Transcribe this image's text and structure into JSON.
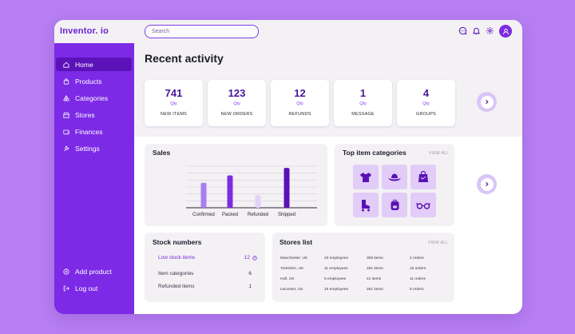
{
  "app": {
    "logo": "Inventor. io"
  },
  "search": {
    "placeholder": "Search"
  },
  "sidebar": {
    "items": [
      {
        "label": "Home",
        "icon": "home-icon",
        "active": true
      },
      {
        "label": "Products",
        "icon": "bag-icon"
      },
      {
        "label": "Categories",
        "icon": "shapes-icon"
      },
      {
        "label": "Stores",
        "icon": "store-icon"
      },
      {
        "label": "Finances",
        "icon": "wallet-icon"
      },
      {
        "label": "Settings",
        "icon": "wrench-icon"
      }
    ],
    "bottom": [
      {
        "label": "Add product",
        "icon": "plus-circle-icon"
      },
      {
        "label": "Log out",
        "icon": "logout-icon"
      }
    ]
  },
  "main": {
    "title": "Recent activity",
    "stats": [
      {
        "value": "741",
        "unit": "Qty",
        "label": "NEW ITEMS"
      },
      {
        "value": "123",
        "unit": "Qty",
        "label": "NEW ORDERS"
      },
      {
        "value": "12",
        "unit": "Qty",
        "label": "REFUNDS"
      },
      {
        "value": "1",
        "unit": "Qty",
        "label": "MESSAGE"
      },
      {
        "value": "4",
        "unit": "Qty",
        "label": "GROUPS"
      }
    ]
  },
  "sales": {
    "title": "Sales",
    "chart_data": {
      "type": "bar",
      "categories": [
        "Confirmed",
        "Packed",
        "Refunded",
        "Shipped"
      ],
      "colors": [
        "#a77ff0",
        "#7d2be2",
        "#e3d3f8",
        "#5a11b5"
      ],
      "values": [
        6,
        7.8,
        3.1,
        9.6
      ],
      "ylim": [
        0,
        10
      ],
      "grid": true
    }
  },
  "categories": {
    "title": "Top item categories",
    "view_all": "VIEW ALL",
    "tiles": [
      "tshirt-icon",
      "hat-icon",
      "shopping-bag-icon",
      "roller-skate-icon",
      "backpack-icon",
      "glasses-icon"
    ]
  },
  "stock": {
    "title": "Stock numbers",
    "rows": [
      {
        "label": "Low stock items",
        "value": "12"
      },
      {
        "label": "Item categories",
        "value": "6"
      },
      {
        "label": "Refunded items",
        "value": "1"
      }
    ]
  },
  "stores": {
    "title": "Stores list",
    "view_all": "VIEW ALL",
    "rows": [
      {
        "location": "Manchester, UK",
        "employees": "23 employees",
        "items": "308 items",
        "orders": "2 orders"
      },
      {
        "location": "Yorkshire, UK",
        "employees": "11 employees",
        "items": "291 items",
        "orders": "15 orders"
      },
      {
        "location": "Hull, UK",
        "employees": "5 employees",
        "items": "41 items",
        "orders": "11 orders"
      },
      {
        "location": "Leicester, UK",
        "employees": "16 employees",
        "items": "261 items",
        "orders": "8 orders"
      }
    ]
  },
  "colors": {
    "background": "#b67ef2",
    "sidebar": "#7c2ae6",
    "sidebar_active": "#5b12b8",
    "accent": "#7a2be0"
  }
}
